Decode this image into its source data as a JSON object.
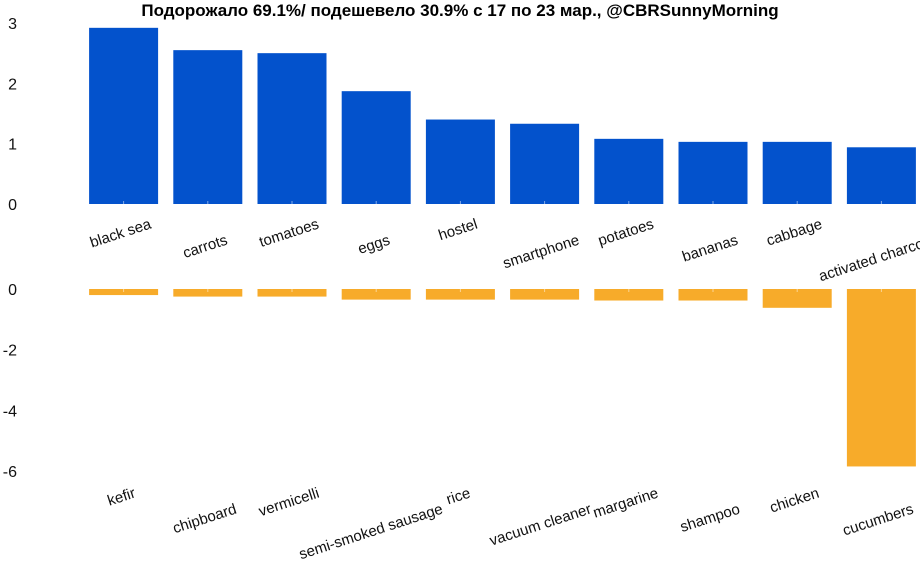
{
  "chart_data": [
    {
      "type": "bar",
      "title": "Подорожало 69.1%/ подешевело 30.9%  с 17 по 23 мар., @CBRSunnyMorning",
      "categories": [
        "black sea",
        "carrots",
        "tomatoes",
        "eggs",
        "hostel",
        "smartphone",
        "potatoes",
        "bananas",
        "cabbage",
        "activated charcoal"
      ],
      "values": [
        2.92,
        2.55,
        2.5,
        1.87,
        1.4,
        1.33,
        1.08,
        1.03,
        1.03,
        0.94
      ],
      "ylim": [
        0,
        3
      ],
      "yticks": [
        "3",
        "2",
        "1",
        "0"
      ],
      "color": "#0352cc",
      "grid": false
    },
    {
      "type": "bar",
      "categories": [
        "kefir",
        "chipboard",
        "vermicelli",
        "semi-smoked sausage",
        "rice",
        "vacuum cleaner",
        "margarine",
        "shampoo",
        "chicken",
        "cucumbers"
      ],
      "values": [
        -0.2,
        -0.25,
        -0.25,
        -0.35,
        -0.35,
        -0.35,
        -0.38,
        -0.38,
        -0.62,
        -5.85
      ],
      "ylim": [
        -6,
        0
      ],
      "yticks": [
        "0",
        "-2",
        "-4",
        "-6"
      ],
      "color": "#f7ab2a",
      "grid": false
    }
  ]
}
